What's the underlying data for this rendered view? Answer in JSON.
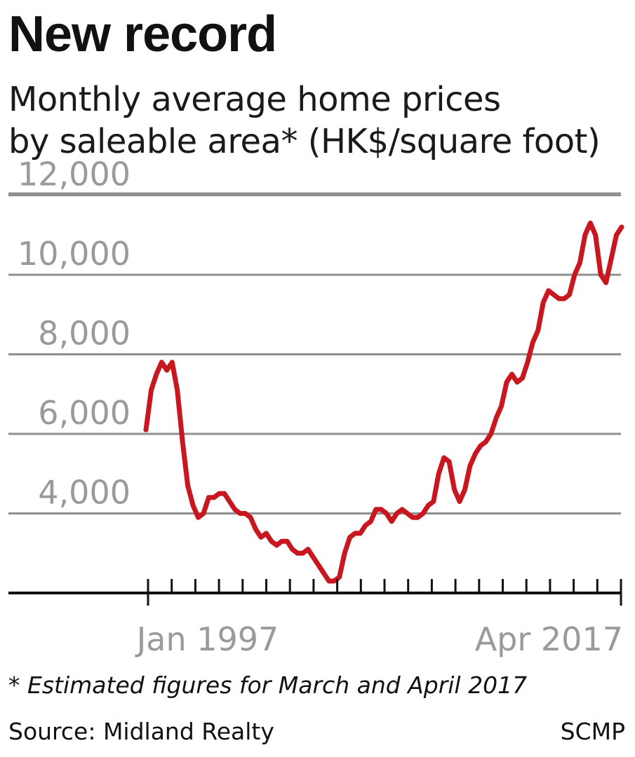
{
  "title": "New record",
  "subtitle": "Monthly average home prices\nby saleable area* (HK$/square foot)",
  "note": "* Estimated figures for March and April 2017",
  "source": "Source: Midland Realty",
  "credit": "SCMP",
  "colors": {
    "line": "#c8171e",
    "grid": "#8f8f8f",
    "axis": "#111111",
    "tick_label": "#9a9a9a"
  },
  "chart_data": {
    "type": "line",
    "x_start": "Jan 1997",
    "x_end": "Apr 2017",
    "x_labels": [
      "Jan 1997",
      "Apr 2017"
    ],
    "y_ticks": [
      "12,000",
      "10,000",
      "8,000",
      "6,000",
      "4,000"
    ],
    "y_tick_values": [
      12000,
      10000,
      8000,
      6000,
      4000
    ],
    "ylim": [
      2000,
      12800
    ],
    "grid": true,
    "ylabel": "HK$/square foot",
    "series": [
      {
        "values": [
          6100,
          7100,
          7500,
          7800,
          7600,
          7800,
          7100,
          5800,
          4700,
          4200,
          3900,
          4000,
          4400,
          4400,
          4500,
          4500,
          4300,
          4100,
          4000,
          4000,
          3900,
          3600,
          3400,
          3500,
          3300,
          3200,
          3300,
          3300,
          3100,
          3000,
          3000,
          3100,
          2900,
          2700,
          2500,
          2300,
          2300,
          2400,
          3000,
          3400,
          3500,
          3500,
          3700,
          3800,
          4100,
          4100,
          4000,
          3800,
          4000,
          4100,
          4000,
          3900,
          3900,
          4000,
          4200,
          4300,
          5000,
          5400,
          5300,
          4600,
          4300,
          4600,
          5200,
          5500,
          5700,
          5800,
          6000,
          6400,
          6700,
          7300,
          7500,
          7300,
          7400,
          7800,
          8300,
          8600,
          9300,
          9600,
          9500,
          9400,
          9400,
          9500,
          10000,
          10300,
          11000,
          11300,
          11000,
          10000,
          9800,
          10400,
          11000,
          11200
        ]
      }
    ]
  }
}
